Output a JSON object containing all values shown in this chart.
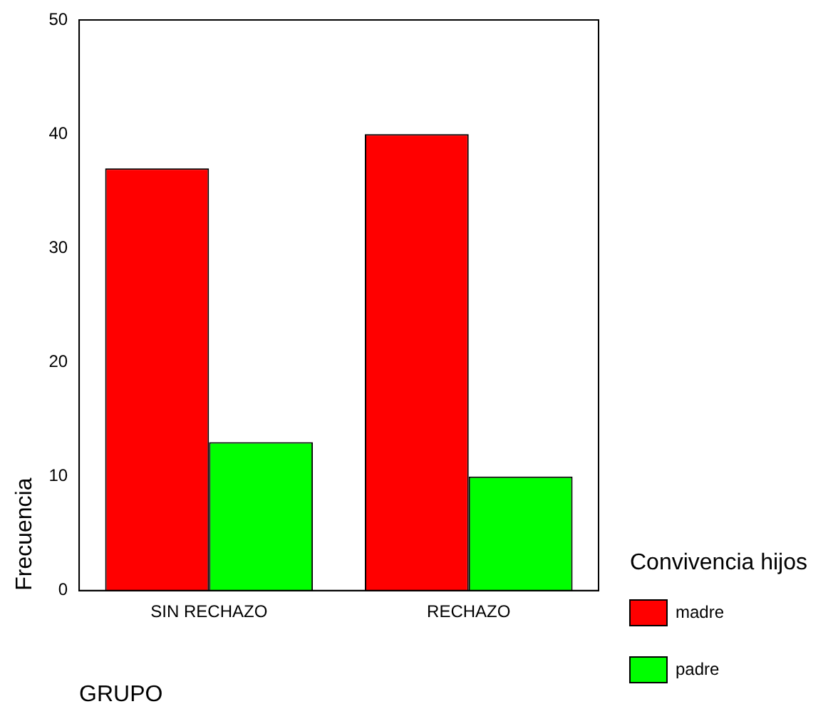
{
  "chart_data": {
    "type": "bar",
    "xlabel": "GRUPO",
    "ylabel": "Frecuencia",
    "legend_title": "Convivencia hijos",
    "categories": [
      "SIN RECHAZO",
      "RECHAZO"
    ],
    "series": [
      {
        "name": "madre",
        "color": "#ff0000",
        "values": [
          37,
          40
        ]
      },
      {
        "name": "padre",
        "color": "#00ff00",
        "values": [
          13,
          10
        ]
      }
    ],
    "ylim": [
      0,
      50
    ],
    "yticks": [
      0,
      10,
      20,
      30,
      40,
      50
    ],
    "grid": false,
    "legend": "right"
  }
}
